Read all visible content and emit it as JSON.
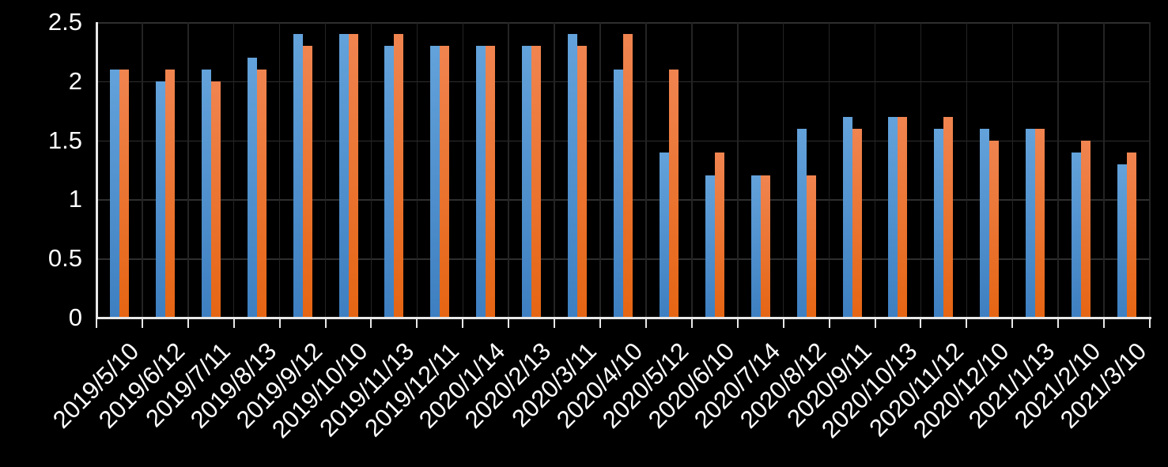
{
  "chart_data": {
    "type": "bar",
    "title": "",
    "xlabel": "",
    "ylabel": "",
    "categories": [
      "2019/5/10",
      "2019/6/12",
      "2019/7/11",
      "2019/8/13",
      "2019/9/12",
      "2019/10/10",
      "2019/11/13",
      "2019/12/11",
      "2020/1/14",
      "2020/2/13",
      "2020/3/11",
      "2020/4/10",
      "2020/5/12",
      "2020/6/10",
      "2020/7/14",
      "2020/8/12",
      "2020/9/11",
      "2020/10/13",
      "2020/11/12",
      "2020/12/10",
      "2021/1/13",
      "2021/2/10",
      "2021/3/10"
    ],
    "series": [
      {
        "name": "blue",
        "color_top": "#63a2da",
        "color_bottom": "#3e7fc1",
        "values": [
          2.1,
          2.0,
          2.1,
          2.2,
          2.4,
          2.4,
          2.3,
          2.3,
          2.3,
          2.3,
          2.4,
          2.1,
          1.4,
          1.2,
          1.2,
          1.6,
          1.7,
          1.7,
          1.6,
          1.6,
          1.6,
          1.4,
          1.3
        ]
      },
      {
        "name": "orange",
        "color_top": "#f08450",
        "color_bottom": "#e56513",
        "values": [
          2.1,
          2.1,
          2.0,
          2.1,
          2.3,
          2.4,
          2.4,
          2.3,
          2.3,
          2.3,
          2.3,
          2.4,
          2.1,
          1.4,
          1.2,
          1.2,
          1.6,
          1.7,
          1.7,
          1.5,
          1.6,
          1.5,
          1.4
        ]
      }
    ],
    "ylim": [
      0,
      2.5
    ],
    "yticks": [
      0,
      0.5,
      1,
      1.5,
      2,
      2.5
    ],
    "ytick_labels": [
      "0",
      "0.5",
      "1",
      "1.5",
      "2",
      "2.5"
    ],
    "grid": true,
    "legend_position": "none",
    "background_color": "#000000",
    "hgrid_color": "#2e2e2e",
    "vgrid_color": "#242424",
    "axis_color": "#e8e8e8",
    "text_color": "#ffffff"
  }
}
